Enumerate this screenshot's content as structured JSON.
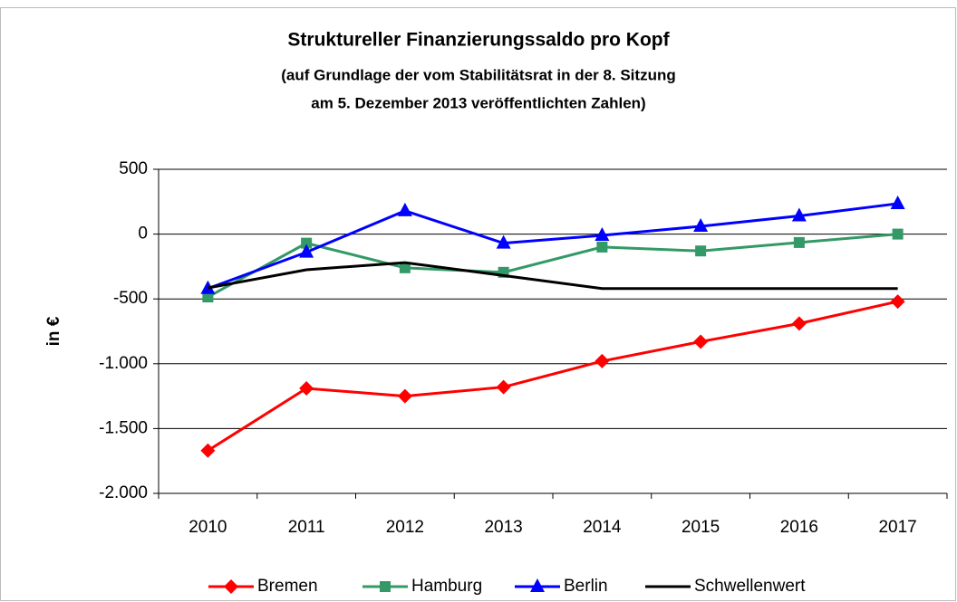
{
  "chart_data": {
    "type": "line",
    "title": "Struktureller Finanzierungssaldo pro Kopf",
    "subtitle": [
      "(auf Grundlage der vom Stabilitätsrat in der 8. Sitzung",
      "am 5. Dezember 2013 veröffentlichten Zahlen)"
    ],
    "y_label": "in €",
    "categories": [
      "2010",
      "2011",
      "2012",
      "2013",
      "2014",
      "2015",
      "2016",
      "2017"
    ],
    "series": [
      {
        "name": "Bremen",
        "color": "#ff0000",
        "marker": "diamond",
        "values": [
          -1670,
          -1190,
          -1250,
          -1180,
          -980,
          -830,
          -690,
          -520
        ]
      },
      {
        "name": "Hamburg",
        "color": "#339966",
        "marker": "square",
        "values": [
          -485,
          -70,
          -260,
          -295,
          -100,
          -130,
          -65,
          0
        ]
      },
      {
        "name": "Berlin",
        "color": "#0000ff",
        "marker": "triangle",
        "values": [
          -420,
          -140,
          180,
          -70,
          -10,
          60,
          140,
          235
        ]
      },
      {
        "name": "Schwellenwert",
        "color": "#000000",
        "marker": "none",
        "values": [
          -415,
          -275,
          -220,
          -320,
          -420,
          -420,
          -420,
          -420
        ]
      }
    ],
    "ylim": [
      -2000,
      500
    ],
    "yticks": [
      500,
      0,
      -500,
      {
        "value": -1000,
        "label": "-1.000"
      },
      {
        "value": -1500,
        "label": "-1.500"
      },
      {
        "value": -2000,
        "label": "-2.000"
      }
    ],
    "grid": true,
    "legend": "bottom"
  }
}
